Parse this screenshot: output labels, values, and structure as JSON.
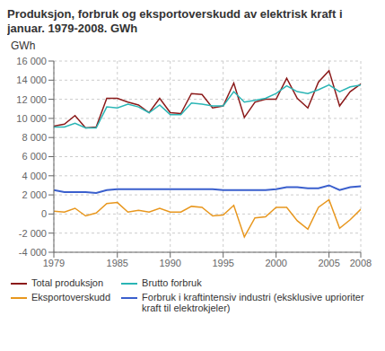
{
  "chart_data": {
    "type": "line",
    "title": "Produksjon, forbruk og eksportoverskudd av elektrisk kraft i\njanuar. 1979-2008. GWh",
    "y_label": "GWh",
    "x": [
      1979,
      1980,
      1981,
      1982,
      1983,
      1984,
      1985,
      1986,
      1987,
      1988,
      1989,
      1990,
      1991,
      1992,
      1993,
      1994,
      1995,
      1996,
      1997,
      1998,
      1999,
      2000,
      2001,
      2002,
      2003,
      2004,
      2005,
      2006,
      2007,
      2008
    ],
    "series": [
      {
        "name": "Total produksjon",
        "color": "#8b1a1a",
        "values": [
          9200,
          9400,
          10300,
          9000,
          9100,
          12100,
          12100,
          11700,
          11400,
          10600,
          12100,
          10600,
          10500,
          12600,
          12500,
          11100,
          11300,
          13700,
          10100,
          11700,
          12000,
          12000,
          14200,
          12100,
          11100,
          13800,
          15000,
          11300,
          12800,
          13600
        ]
      },
      {
        "name": "Brutto forbruk",
        "color": "#2ab5b5",
        "values": [
          9100,
          9100,
          9500,
          9000,
          9000,
          11200,
          11100,
          11500,
          11200,
          10600,
          11400,
          10400,
          10400,
          11600,
          11500,
          11300,
          11300,
          12800,
          11700,
          11900,
          12100,
          12600,
          13400,
          12800,
          12600,
          13000,
          13500,
          12800,
          13300,
          13500
        ]
      },
      {
        "name": "Eksportoverskudd",
        "color": "#e8971e",
        "values": [
          300,
          200,
          600,
          -200,
          100,
          1100,
          1200,
          200,
          400,
          200,
          600,
          200,
          200,
          800,
          700,
          -200,
          -100,
          900,
          -2400,
          -400,
          -300,
          700,
          700,
          -700,
          -1600,
          700,
          1500,
          -1500,
          -600,
          500
        ]
      },
      {
        "name": "Forbruk i kraftintensiv industri (eksklusive uprioriter kraft til elektrokjeler)",
        "color": "#3a5fcd",
        "values": [
          2500,
          2300,
          2300,
          2300,
          2200,
          2500,
          2600,
          2600,
          2600,
          2600,
          2600,
          2600,
          2600,
          2600,
          2600,
          2600,
          2500,
          2500,
          2500,
          2500,
          2500,
          2600,
          2800,
          2800,
          2700,
          2700,
          3000,
          2500,
          2800,
          2900
        ]
      }
    ],
    "xlim": [
      1979,
      2008
    ],
    "xticks": [
      1979,
      1985,
      1990,
      1995,
      2000,
      2005,
      2008
    ],
    "ylim": [
      -4000,
      16000
    ],
    "yticks": [
      {
        "value": -4000,
        "label": "-4 000"
      },
      {
        "value": -2000,
        "label": "-2 000"
      },
      0,
      {
        "value": 2000,
        "label": "2 000"
      },
      {
        "value": 4000,
        "label": "4 000"
      },
      {
        "value": 6000,
        "label": "6 000"
      },
      {
        "value": 8000,
        "label": "8 000"
      },
      {
        "value": 10000,
        "label": "10 000"
      },
      {
        "value": 12000,
        "label": "12 000"
      },
      {
        "value": 14000,
        "label": "14 000"
      },
      {
        "value": 16000,
        "label": "16 000"
      }
    ],
    "grid": true,
    "legend": "bottom"
  }
}
